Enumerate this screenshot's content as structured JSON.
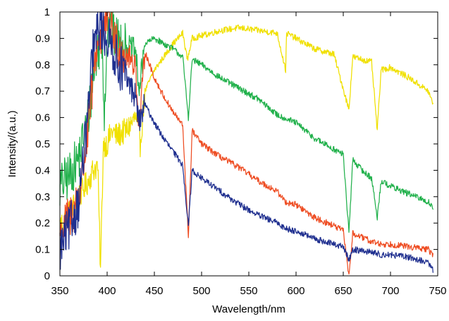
{
  "chart_data": {
    "type": "line",
    "title": "",
    "xlabel": "Wavelength/nm",
    "ylabel": "Intensity/(a.u.)",
    "xlim": [
      350,
      750
    ],
    "ylim": [
      0,
      1
    ],
    "x_ticks": [
      350,
      400,
      450,
      500,
      550,
      600,
      650,
      700,
      750
    ],
    "y_ticks": [
      0,
      0.1,
      0.2,
      0.3,
      0.4,
      0.5,
      0.6,
      0.7,
      0.8,
      0.9,
      1
    ],
    "y_tick_labels": [
      "0",
      "0.1",
      "0.2",
      "0.3",
      "0.4",
      "0.5",
      "0.6",
      "0.7",
      "0.8",
      "0.9",
      "1"
    ],
    "grid": false,
    "legend": "none",
    "series": [
      {
        "color": "#F0E000",
        "x": [
          350,
          360,
          370,
          380,
          385,
          390,
          393,
          396,
          400,
          405,
          410,
          420,
          430,
          435,
          440,
          450,
          460,
          470,
          480,
          485,
          490,
          500,
          520,
          540,
          560,
          580,
          589,
          590,
          600,
          620,
          640,
          656,
          660,
          680,
          686,
          690,
          700,
          720,
          740,
          745
        ],
        "y": [
          0.19,
          0.24,
          0.3,
          0.36,
          0.4,
          0.42,
          0.02,
          0.5,
          0.5,
          0.55,
          0.53,
          0.55,
          0.6,
          0.5,
          0.7,
          0.78,
          0.83,
          0.88,
          0.92,
          0.82,
          0.9,
          0.91,
          0.93,
          0.94,
          0.93,
          0.92,
          0.78,
          0.92,
          0.9,
          0.86,
          0.84,
          0.63,
          0.83,
          0.81,
          0.55,
          0.78,
          0.79,
          0.75,
          0.7,
          0.65
        ]
      },
      {
        "color": "#22B14C",
        "x": [
          350,
          360,
          370,
          380,
          385,
          390,
          395,
          397,
          400,
          405,
          410,
          420,
          430,
          434,
          440,
          450,
          460,
          470,
          480,
          486,
          490,
          500,
          520,
          540,
          560,
          580,
          600,
          620,
          640,
          650,
          656,
          660,
          670,
          680,
          686,
          690,
          700,
          720,
          740,
          745
        ],
        "y": [
          0.34,
          0.38,
          0.45,
          0.6,
          0.75,
          0.85,
          0.9,
          0.6,
          0.93,
          0.92,
          0.9,
          0.87,
          0.85,
          0.7,
          0.88,
          0.9,
          0.88,
          0.86,
          0.83,
          0.6,
          0.82,
          0.8,
          0.75,
          0.71,
          0.67,
          0.61,
          0.58,
          0.52,
          0.48,
          0.46,
          0.16,
          0.44,
          0.4,
          0.37,
          0.22,
          0.36,
          0.34,
          0.31,
          0.28,
          0.26
        ]
      },
      {
        "color": "#EE4D23",
        "x": [
          350,
          360,
          370,
          380,
          385,
          390,
          395,
          400,
          405,
          410,
          420,
          430,
          434,
          440,
          450,
          460,
          470,
          480,
          486,
          490,
          500,
          520,
          540,
          560,
          580,
          589,
          600,
          620,
          640,
          650,
          656,
          660,
          680,
          690,
          700,
          720,
          740,
          745
        ],
        "y": [
          0.16,
          0.22,
          0.3,
          0.55,
          0.75,
          0.9,
          0.92,
          0.98,
          0.95,
          0.88,
          0.84,
          0.8,
          0.55,
          0.85,
          0.75,
          0.68,
          0.62,
          0.57,
          0.15,
          0.55,
          0.5,
          0.45,
          0.41,
          0.36,
          0.32,
          0.28,
          0.27,
          0.22,
          0.19,
          0.17,
          0.0,
          0.16,
          0.13,
          0.12,
          0.12,
          0.11,
          0.1,
          0.08
        ]
      },
      {
        "color": "#1F2F8F",
        "x": [
          350,
          360,
          370,
          380,
          385,
          390,
          393,
          396,
          400,
          405,
          410,
          420,
          430,
          434,
          440,
          450,
          460,
          470,
          480,
          486,
          490,
          500,
          520,
          540,
          560,
          580,
          589,
          600,
          620,
          640,
          650,
          656,
          660,
          680,
          690,
          700,
          720,
          740,
          745
        ],
        "y": [
          0.1,
          0.18,
          0.28,
          0.62,
          0.85,
          0.93,
          0.95,
          0.92,
          0.9,
          0.87,
          0.82,
          0.75,
          0.68,
          0.58,
          0.65,
          0.58,
          0.52,
          0.47,
          0.42,
          0.19,
          0.4,
          0.37,
          0.32,
          0.27,
          0.23,
          0.2,
          0.18,
          0.17,
          0.14,
          0.12,
          0.11,
          0.06,
          0.1,
          0.09,
          0.08,
          0.08,
          0.07,
          0.05,
          0.02
        ]
      }
    ]
  }
}
